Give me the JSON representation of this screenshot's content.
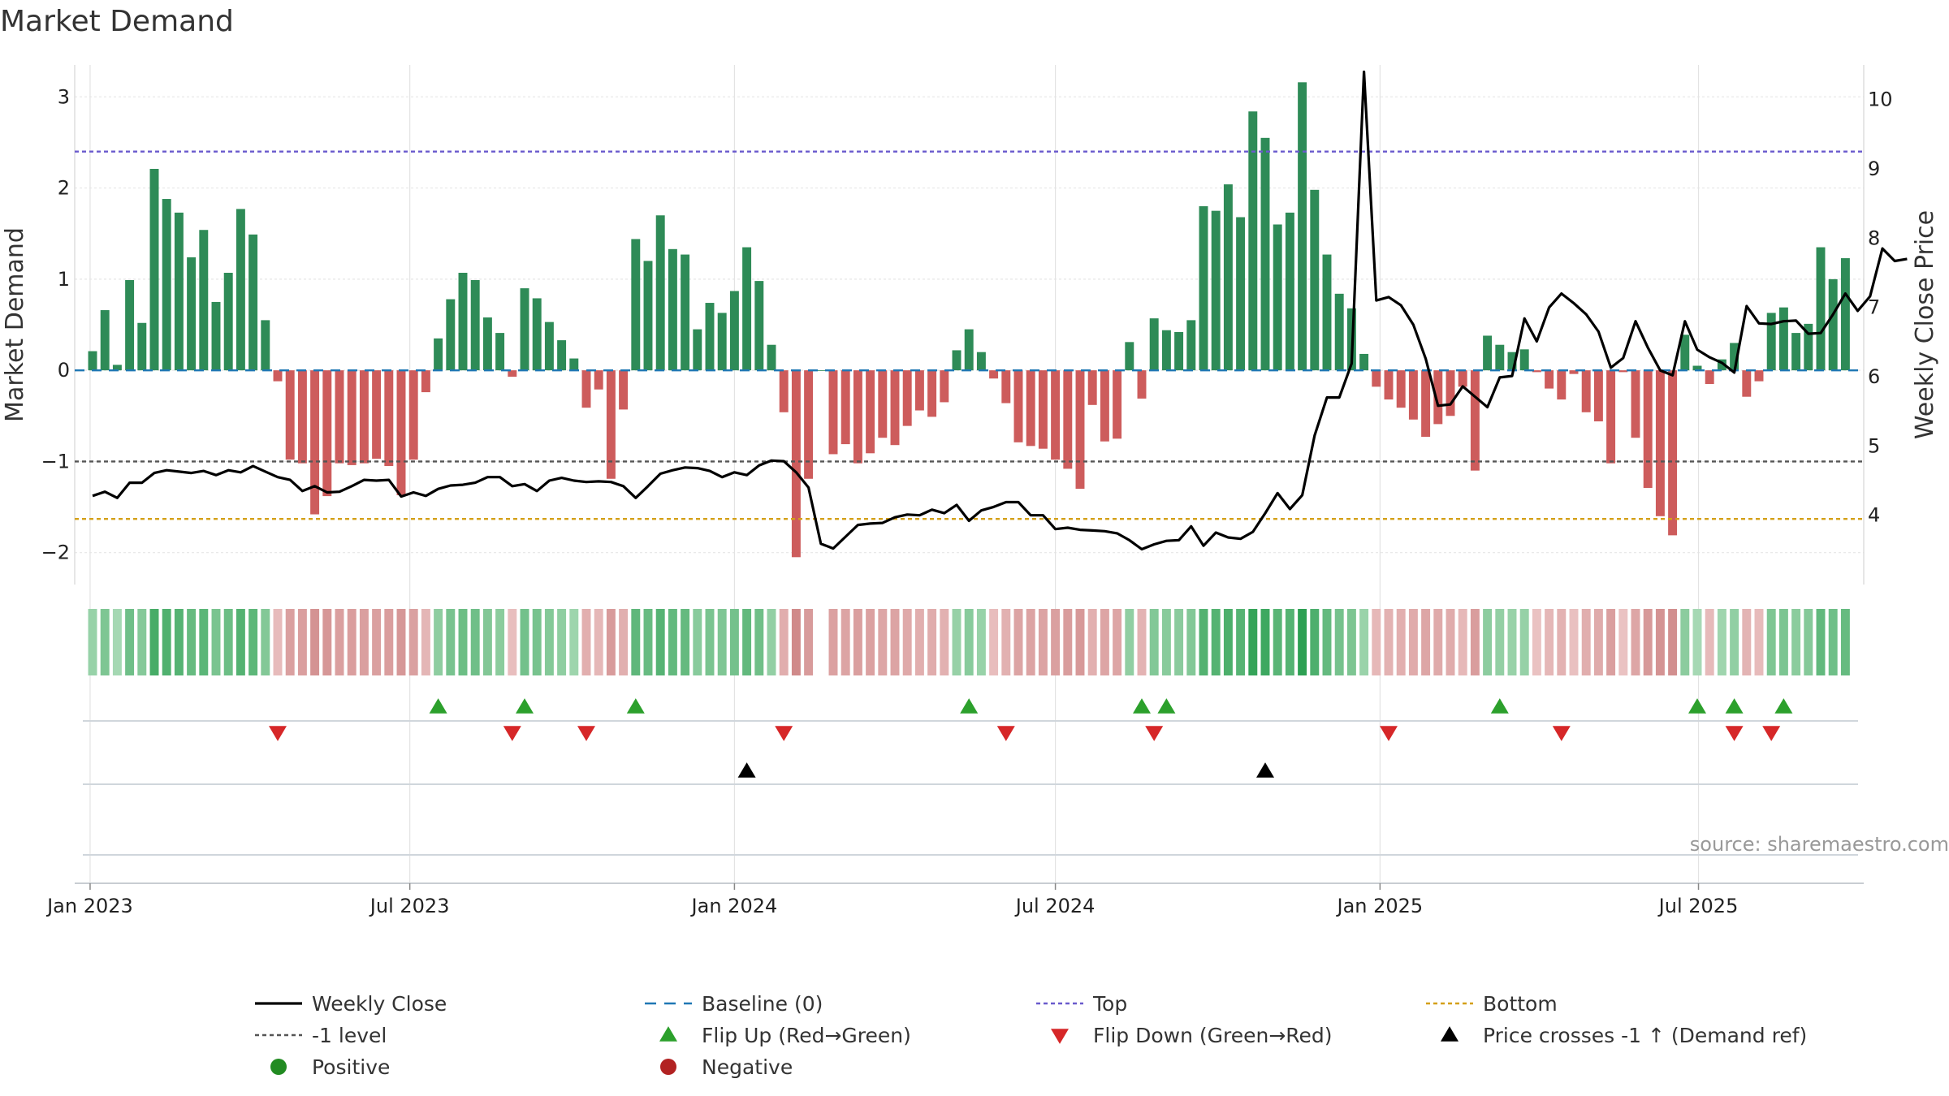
{
  "chart_data": {
    "type": "bar",
    "title": "Market Demand",
    "ylabel_left": "Market Demand",
    "ylabel_right": "Weekly Close Price",
    "ylim_left": [
      -2.35,
      3.35
    ],
    "ylim_right": [
      3.0,
      10.5
    ],
    "yticks_left": [
      -2,
      -1,
      0,
      1,
      2,
      3
    ],
    "yticks_left_labels": [
      "−2",
      "−1",
      "0",
      "1",
      "2",
      "3"
    ],
    "yticks_right": [
      4,
      5,
      6,
      7,
      8,
      9,
      10
    ],
    "yticks_right_labels": [
      "4",
      "5",
      "6",
      "7",
      "8",
      "9",
      "10"
    ],
    "x_start": "2023-01-02",
    "x_step_days": 7,
    "x_ticks": [
      {
        "label": "Jan 2023",
        "week": -0.2
      },
      {
        "label": "Jul 2023",
        "week": 25.7
      },
      {
        "label": "Jan 2024",
        "week": 52
      },
      {
        "label": "Jul 2024",
        "week": 78
      },
      {
        "label": "Jan 2025",
        "week": 104.3
      },
      {
        "label": "Jul 2025",
        "week": 130.1
      }
    ],
    "reference_lines": {
      "top": 2.4,
      "bottom": -1.63,
      "minus_one": -1.0,
      "baseline": 0
    },
    "demand": [
      0.21,
      0.66,
      0.06,
      0.99,
      0.52,
      2.21,
      1.88,
      1.73,
      1.24,
      1.54,
      0.75,
      1.07,
      1.77,
      1.49,
      0.55,
      -0.12,
      -0.98,
      -1.02,
      -1.58,
      -1.38,
      -1.02,
      -1.04,
      -1.02,
      -0.97,
      -1.05,
      -1.37,
      -0.98,
      -0.24,
      0.35,
      0.78,
      1.07,
      0.99,
      0.58,
      0.41,
      -0.07,
      0.9,
      0.79,
      0.53,
      0.33,
      0.13,
      -0.41,
      -0.21,
      -1.19,
      -0.43,
      1.44,
      1.2,
      1.7,
      1.33,
      1.27,
      0.45,
      0.74,
      0.63,
      0.87,
      1.35,
      0.98,
      0.28,
      -0.46,
      -2.05,
      -1.19,
      0.0,
      -0.92,
      -0.81,
      -1.02,
      -0.91,
      -0.74,
      -0.82,
      -0.61,
      -0.44,
      -0.51,
      -0.35,
      0.22,
      0.45,
      0.2,
      -0.09,
      -0.36,
      -0.79,
      -0.83,
      -0.86,
      -0.98,
      -1.08,
      -1.3,
      -0.38,
      -0.78,
      -0.75,
      0.31,
      -0.31,
      0.57,
      0.44,
      0.42,
      0.55,
      1.8,
      1.75,
      2.04,
      1.68,
      2.84,
      2.55,
      1.6,
      1.73,
      3.16,
      1.98,
      1.27,
      0.84,
      0.68,
      0.18,
      -0.18,
      -0.32,
      -0.41,
      -0.54,
      -0.73,
      -0.59,
      -0.5,
      -0.18,
      -1.1,
      0.38,
      0.28,
      0.2,
      0.23,
      -0.02,
      -0.2,
      -0.32,
      -0.04,
      -0.46,
      -0.56,
      -1.02,
      -0.02,
      -0.74,
      -1.29,
      -1.6,
      -1.81,
      0.39,
      0.05,
      -0.15,
      0.12,
      0.3,
      -0.29,
      -0.12,
      0.63,
      0.69,
      0.41,
      0.51,
      1.35,
      1.0,
      1.23
    ],
    "weekly_close": [
      4.28,
      4.34,
      4.25,
      4.47,
      4.47,
      4.61,
      4.65,
      4.63,
      4.61,
      4.64,
      4.58,
      4.65,
      4.62,
      4.71,
      4.63,
      4.55,
      4.51,
      4.35,
      4.42,
      4.33,
      4.34,
      4.42,
      4.51,
      4.5,
      4.51,
      4.27,
      4.33,
      4.28,
      4.38,
      4.43,
      4.44,
      4.47,
      4.55,
      4.55,
      4.42,
      4.45,
      4.35,
      4.5,
      4.54,
      4.5,
      4.48,
      4.49,
      4.48,
      4.42,
      4.25,
      4.42,
      4.6,
      4.65,
      4.69,
      4.68,
      4.64,
      4.55,
      4.62,
      4.58,
      4.72,
      4.79,
      4.78,
      4.62,
      4.4,
      3.59,
      3.52,
      3.69,
      3.86,
      3.88,
      3.89,
      3.97,
      4.01,
      4.0,
      4.08,
      4.03,
      4.15,
      3.92,
      4.07,
      4.12,
      4.19,
      4.19,
      4.0,
      4.0,
      3.8,
      3.82,
      3.79,
      3.78,
      3.77,
      3.74,
      3.64,
      3.51,
      3.58,
      3.63,
      3.64,
      3.84,
      3.56,
      3.75,
      3.68,
      3.66,
      3.76,
      4.03,
      4.32,
      4.09,
      4.29,
      5.15,
      5.7,
      5.7,
      6.19,
      10.4,
      7.1,
      7.15,
      7.03,
      6.75,
      6.26,
      5.58,
      5.6,
      5.86,
      5.71,
      5.56,
      5.99,
      6.01,
      6.84,
      6.51,
      7.0,
      7.2,
      7.06,
      6.9,
      6.65,
      6.13,
      6.27,
      6.8,
      6.42,
      6.09,
      6.02,
      6.8,
      6.39,
      6.28,
      6.2,
      6.06,
      7.02,
      6.77,
      6.76,
      6.8,
      6.81,
      6.62,
      6.63,
      6.9,
      7.2,
      6.95,
      7.16,
      7.85,
      7.67,
      7.7
    ],
    "flip_up_weeks": [
      28,
      35,
      44,
      71,
      85,
      87,
      114,
      130,
      133,
      137
    ],
    "flip_down_weeks": [
      15,
      34,
      40,
      56,
      74,
      86,
      105,
      119,
      133,
      136
    ],
    "price_cross_weeks": [
      53,
      95
    ],
    "colors": {
      "positive_bar": "#2e8b57",
      "negative_bar": "#cd5c5c",
      "close_line": "#000000",
      "baseline": "#1f77b4",
      "top_line": "#6a5acd",
      "bottom_line": "#d4a017",
      "minus_one_line": "#555555",
      "flip_up": "#2ca02c",
      "flip_down": "#d62728",
      "cross": "#000000",
      "positive_dot": "#228b22",
      "negative_dot": "#b22222"
    },
    "legend": [
      {
        "label": "Weekly Close",
        "kind": "solid",
        "color": "#000000"
      },
      {
        "label": "Baseline (0)",
        "kind": "dash",
        "color": "#1f77b4"
      },
      {
        "label": "Top",
        "kind": "dot",
        "color": "#6a5acd"
      },
      {
        "label": "Bottom",
        "kind": "dot",
        "color": "#d4a017"
      },
      {
        "label": "-1 level",
        "kind": "dot",
        "color": "#555555"
      },
      {
        "label": "Flip Up (Red→Green)",
        "kind": "tri-up",
        "color": "#2ca02c"
      },
      {
        "label": "Flip Down (Green→Red)",
        "kind": "tri-down",
        "color": "#d62728"
      },
      {
        "label": "Price crosses -1 ↑ (Demand ref)",
        "kind": "tri-up",
        "color": "#000000"
      },
      {
        "label": "Positive",
        "kind": "circle",
        "color": "#228b22"
      },
      {
        "label": "Negative",
        "kind": "circle",
        "color": "#b22222"
      }
    ],
    "source": "source: sharemaestro.com"
  }
}
